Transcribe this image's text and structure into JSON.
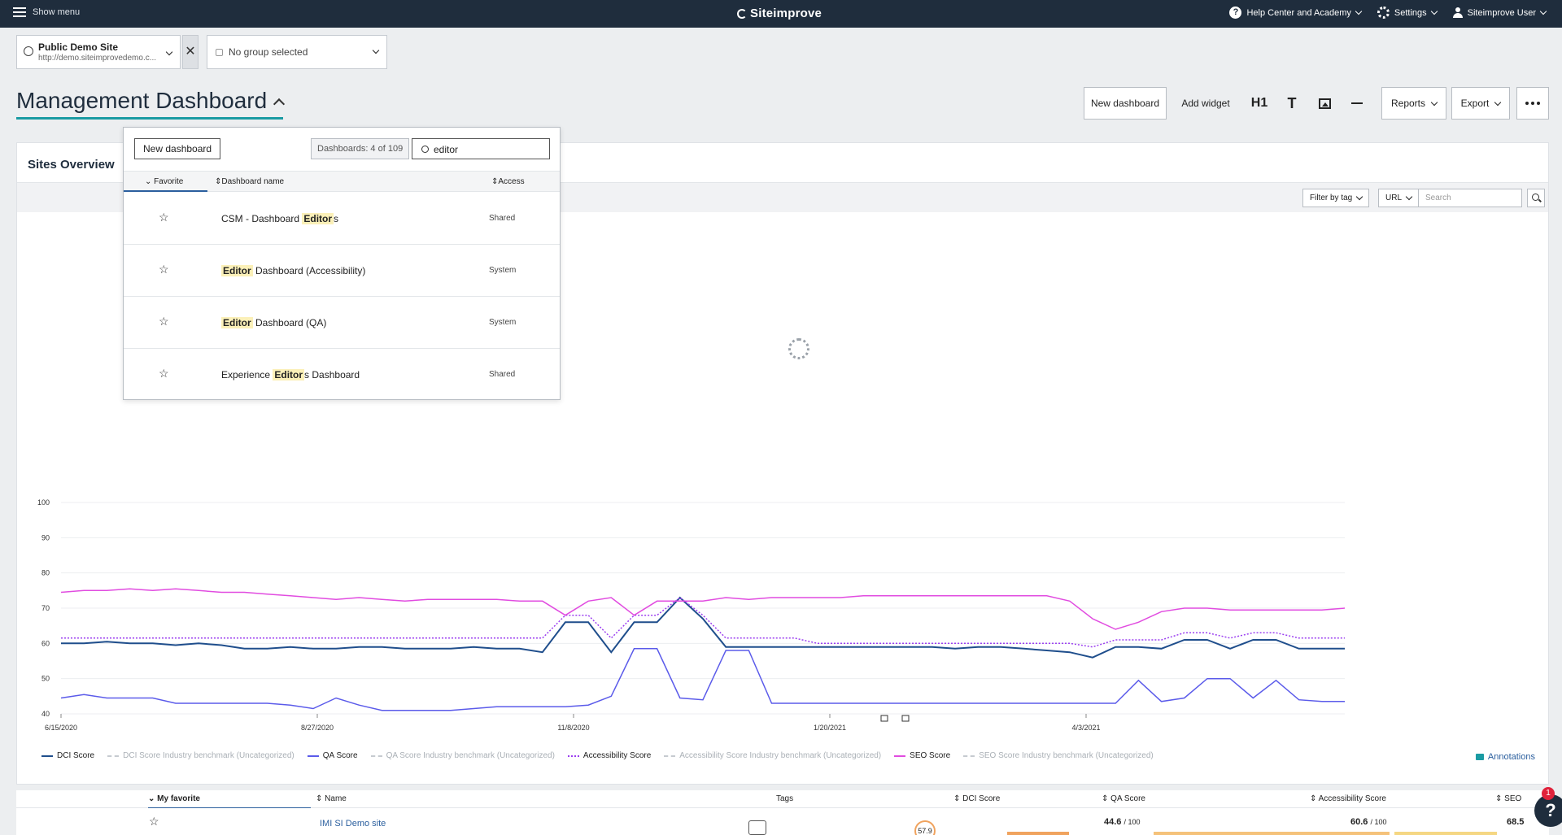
{
  "topbar": {
    "menu_label": "Show menu",
    "brand": "Siteimprove",
    "help_label": "Help Center and Academy",
    "settings_label": "Settings",
    "user_label": "Siteimprove User"
  },
  "site_selector": {
    "name": "Public Demo Site",
    "url": "http://demo.siteimprovedemo.c..."
  },
  "group_selector": {
    "value": "No group selected"
  },
  "page": {
    "title": "Management Dashboard"
  },
  "toolbar": {
    "new_dashboard": "New dashboard",
    "add_widget": "Add widget",
    "h1": "H1",
    "text": "T",
    "reports": "Reports",
    "export": "Export"
  },
  "card": {
    "title": "Sites Overview",
    "filter_by_tag": "Filter by tag",
    "url_select": "URL",
    "search_placeholder": "Search"
  },
  "dropdown": {
    "new_dashboard": "New dashboard",
    "count": "Dashboards: 4 of 109",
    "search_value": "editor",
    "columns": {
      "favorite": "Favorite",
      "name": "Dashboard name",
      "access": "Access"
    },
    "rows": [
      {
        "pre": "CSM - Dashboard ",
        "hl": "Editor",
        "post": "s",
        "access": "Shared"
      },
      {
        "pre": "",
        "hl": "Editor",
        "post": " Dashboard (Accessibility)",
        "access": "System"
      },
      {
        "pre": "",
        "hl": "Editor",
        "post": " Dashboard (QA)",
        "access": "System"
      },
      {
        "pre": "Experience ",
        "hl": "Editor",
        "post": "s Dashboard",
        "access": "Shared"
      }
    ]
  },
  "chart_data": {
    "type": "line",
    "x_labels": [
      "6/15/2020",
      "8/27/2020",
      "11/8/2020",
      "1/20/2021",
      "4/3/2021"
    ],
    "y_ticks": [
      100,
      90,
      80,
      70,
      60,
      50,
      40
    ],
    "ylim": [
      40,
      100
    ],
    "grid": true,
    "legend_position": "bottom",
    "series": [
      {
        "name": "DCI Score",
        "color": "#1f4e8c",
        "style": "solid",
        "values": [
          60,
          60,
          60.5,
          60,
          60,
          59.5,
          60,
          59.5,
          58.5,
          58.5,
          59,
          58.5,
          58.5,
          59,
          59,
          58.5,
          58.5,
          58.5,
          59,
          58.5,
          58.5,
          57.5,
          66,
          66,
          57.5,
          66,
          66,
          73,
          67,
          59,
          59,
          59,
          59,
          59,
          59,
          59,
          59,
          59,
          59,
          58.5,
          59,
          59,
          58.5,
          58,
          57.5,
          56,
          59,
          59,
          58.5,
          61,
          61,
          58.5,
          61,
          61,
          58.5,
          58.5,
          58.5
        ]
      },
      {
        "name": "DCI Score Industry benchmark (Uncategorized)",
        "color": "#c6cad0",
        "style": "dashed",
        "values": []
      },
      {
        "name": "QA Score",
        "color": "#5b5bea",
        "style": "solid",
        "values": [
          44.5,
          45.5,
          44.5,
          44.5,
          44.5,
          43,
          43,
          43,
          43,
          43,
          42.5,
          41.5,
          44.5,
          42.5,
          41,
          41,
          41,
          41,
          41.5,
          42,
          42,
          42,
          42,
          42.5,
          45,
          58.5,
          58.5,
          44.5,
          44,
          58,
          58,
          43,
          43,
          43,
          43,
          43,
          43,
          43,
          43,
          43,
          43,
          43,
          43,
          43,
          43,
          43,
          43,
          49.5,
          43.5,
          44.5,
          50,
          50,
          44.5,
          49.5,
          44,
          43.5,
          43.5
        ]
      },
      {
        "name": "QA Score Industry benchmark (Uncategorized)",
        "color": "#c6cad0",
        "style": "dashed",
        "values": []
      },
      {
        "name": "Accessibility Score",
        "color": "#9b3ff0",
        "style": "dotted",
        "values": [
          61.5,
          61.5,
          61.5,
          61.5,
          61.5,
          61.5,
          61.5,
          61.5,
          61.5,
          61.5,
          61.5,
          61.5,
          61.5,
          61.5,
          61.5,
          61.5,
          61.5,
          61.5,
          61.5,
          61.5,
          61.5,
          61.5,
          68,
          68,
          61.5,
          68,
          68,
          73,
          68,
          61.5,
          61.5,
          61.5,
          61.5,
          60,
          60,
          60,
          60,
          60,
          60,
          60,
          60,
          60,
          60,
          60,
          60,
          59,
          61,
          61,
          61,
          63,
          63,
          61.5,
          63,
          63,
          61.5,
          61.5,
          61.5
        ]
      },
      {
        "name": "Accessibility Score Industry benchmark (Uncategorized)",
        "color": "#c6cad0",
        "style": "dashed",
        "values": []
      },
      {
        "name": "SEO Score",
        "color": "#e14ce0",
        "style": "solid",
        "values": [
          74.5,
          75,
          75,
          75.5,
          75,
          75.5,
          75,
          74.5,
          74.5,
          74,
          73.5,
          73,
          72.5,
          73,
          72.5,
          72,
          72.5,
          72.5,
          72.5,
          72.5,
          72,
          72,
          68,
          72,
          73,
          68,
          72,
          72,
          72,
          73,
          72.5,
          73,
          73,
          73,
          73,
          73.5,
          73.5,
          73.5,
          73.5,
          73.5,
          73.5,
          73.5,
          73.5,
          73.5,
          72,
          67,
          64,
          66,
          69,
          70,
          70,
          69.5,
          69.5,
          69.5,
          69.5,
          69.5,
          70
        ]
      },
      {
        "name": "SEO Score Industry benchmark (Uncategorized)",
        "color": "#c6cad0",
        "style": "dashed",
        "values": []
      }
    ],
    "annotations_label": "Annotations"
  },
  "table": {
    "columns": {
      "favorite": "My favorite",
      "name": "Name",
      "tags": "Tags",
      "dci": "DCI Score",
      "qa": "QA Score",
      "acc": "Accessibility Score",
      "seo": "SEO"
    },
    "row": {
      "name": "IMI SI Demo site",
      "dci": "57.9",
      "qa": "44.6",
      "qa_max": "/ 100",
      "acc": "60.6",
      "acc_max": "/ 100",
      "seo": "68.5"
    }
  },
  "help": {
    "label": "?",
    "badge": "1"
  }
}
